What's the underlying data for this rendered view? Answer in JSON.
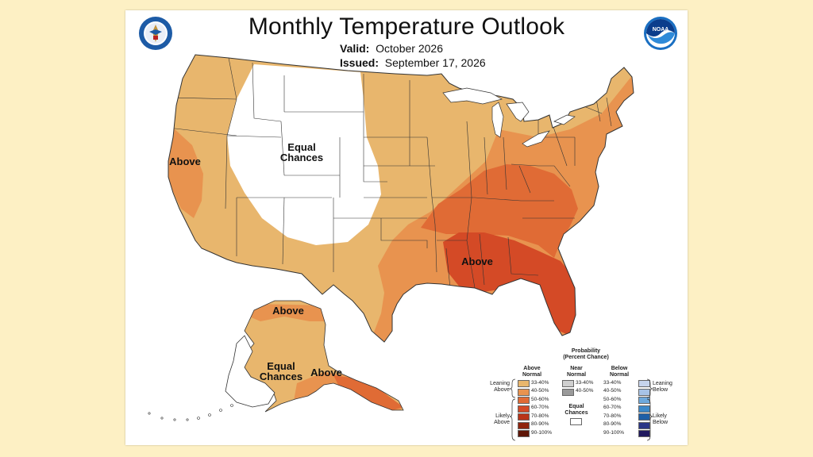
{
  "title": "Monthly Temperature Outlook",
  "valid_label": "Valid:",
  "valid_value": "October 2026",
  "issued_label": "Issued:",
  "issued_value": "September 17, 2026",
  "map_labels": {
    "west_ec_1": "Equal",
    "west_ec_2": "Chances",
    "california_above": "Above",
    "southeast_above": "Above",
    "alaska_north_above": "Above",
    "alaska_ec_1": "Equal",
    "alaska_ec_2": "Chances",
    "alaska_south_above": "Above"
  },
  "legend": {
    "title_1": "Probability",
    "title_2": "(Percent Chance)",
    "above_header_1": "Above",
    "above_header_2": "Normal",
    "near_header_1": "Near",
    "near_header_2": "Normal",
    "below_header_1": "Below",
    "below_header_2": "Normal",
    "leaning_above_1": "Leaning",
    "leaning_above_2": "Above",
    "likely_above_1": "Likely",
    "likely_above_2": "Above",
    "leaning_below_1": "Leaning",
    "leaning_below_2": "Below",
    "likely_below_1": "Likely",
    "likely_below_2": "Below",
    "equal_chances_1": "Equal",
    "equal_chances_2": "Chances",
    "above": [
      {
        "range": "33-40%",
        "color": "#e8b66d"
      },
      {
        "range": "40-50%",
        "color": "#e8934f"
      },
      {
        "range": "50-60%",
        "color": "#e06b35"
      },
      {
        "range": "60-70%",
        "color": "#d44a26"
      },
      {
        "range": "70-80%",
        "color": "#b93418"
      },
      {
        "range": "80-90%",
        "color": "#8f240d"
      },
      {
        "range": "90-100%",
        "color": "#5e1607"
      }
    ],
    "near": [
      {
        "range": "33-40%",
        "color": "#cfcfcf"
      },
      {
        "range": "40-50%",
        "color": "#9a9a9a"
      }
    ],
    "below": [
      {
        "range": "33-40%",
        "color": "#c6d4ec"
      },
      {
        "range": "40-50%",
        "color": "#a7c3e6"
      },
      {
        "range": "50-60%",
        "color": "#6ea9dc"
      },
      {
        "range": "60-70%",
        "color": "#3c89c9"
      },
      {
        "range": "70-80%",
        "color": "#1f5fa6"
      },
      {
        "range": "80-90%",
        "color": "#2b3686"
      },
      {
        "range": "90-100%",
        "color": "#20195e"
      }
    ]
  },
  "colors": {
    "page_bg": "#fdf0c4",
    "lean_above": "#e8b66d",
    "above_40_50": "#e8934f",
    "above_50_60": "#e06b35",
    "above_60_70": "#d44a26"
  },
  "logos": {
    "left": "doc-seal-logo",
    "right": "noaa-logo"
  }
}
